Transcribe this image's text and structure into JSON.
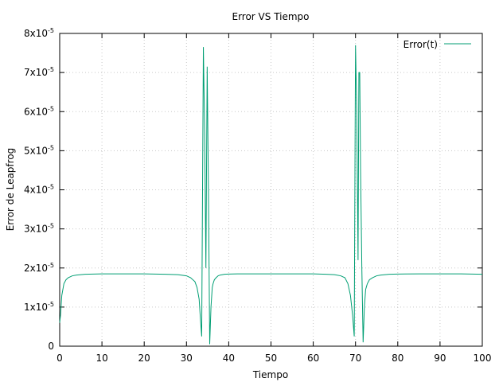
{
  "chart_data": {
    "type": "line",
    "title": "Error VS Tiempo",
    "xlabel": "Tiempo",
    "ylabel": "Error de Leapfrog",
    "xlim": [
      0,
      100
    ],
    "ylim": [
      0,
      8e-05
    ],
    "grid": true,
    "legend": "top-right",
    "x_ticks": [
      "0",
      "10",
      "20",
      "30",
      "40",
      "50",
      "60",
      "70",
      "80",
      "90",
      "100"
    ],
    "x_tick_values": [
      0,
      10,
      20,
      30,
      40,
      50,
      60,
      70,
      80,
      90,
      100
    ],
    "y_ticks": [
      {
        "value": 0,
        "mantissa": "0",
        "exp": ""
      },
      {
        "value": 1e-05,
        "mantissa": "1x10",
        "exp": "-5"
      },
      {
        "value": 2e-05,
        "mantissa": "2x10",
        "exp": "-5"
      },
      {
        "value": 3e-05,
        "mantissa": "3x10",
        "exp": "-5"
      },
      {
        "value": 4e-05,
        "mantissa": "4x10",
        "exp": "-5"
      },
      {
        "value": 5e-05,
        "mantissa": "5x10",
        "exp": "-5"
      },
      {
        "value": 6e-05,
        "mantissa": "6x10",
        "exp": "-5"
      },
      {
        "value": 7e-05,
        "mantissa": "7x10",
        "exp": "-5"
      },
      {
        "value": 8e-05,
        "mantissa": "8x10",
        "exp": "-5"
      }
    ],
    "series": [
      {
        "name": "Error(t)",
        "color": "#009e73",
        "x": [
          0,
          0.2,
          0.5,
          1,
          1.5,
          2,
          3,
          4,
          5,
          6,
          8,
          10,
          15,
          20,
          25,
          28,
          30,
          31,
          32,
          32.5,
          33,
          33.3,
          33.6,
          34,
          34.3,
          34.6,
          34.9,
          35.2,
          35.5,
          35.8,
          36.1,
          36.3,
          36.6,
          37,
          37.5,
          38,
          39,
          40,
          42,
          45,
          50,
          55,
          60,
          63,
          65,
          66.5,
          67.5,
          68.2,
          68.8,
          69.3,
          69.7,
          70.0,
          70.3,
          70.6,
          70.8,
          71.0,
          71.2,
          71.5,
          71.8,
          72.1,
          72.4,
          72.8,
          73.3,
          74,
          75,
          76,
          78,
          80,
          85,
          90,
          95,
          100
        ],
        "y": [
          6e-06,
          8e-06,
          1.3e-05,
          1.6e-05,
          1.7e-05,
          1.75e-05,
          1.8e-05,
          1.82e-05,
          1.83e-05,
          1.84e-05,
          1.845e-05,
          1.85e-05,
          1.85e-05,
          1.85e-05,
          1.84e-05,
          1.83e-05,
          1.8e-05,
          1.75e-05,
          1.65e-05,
          1.5e-05,
          1.2e-05,
          7e-06,
          2.5e-06,
          7.65e-05,
          5.5e-05,
          2e-05,
          7.15e-05,
          4e-05,
          5e-07,
          1e-05,
          1.5e-05,
          1.6e-05,
          1.7e-05,
          1.75e-05,
          1.8e-05,
          1.82e-05,
          1.84e-05,
          1.845e-05,
          1.85e-05,
          1.85e-05,
          1.85e-05,
          1.85e-05,
          1.85e-05,
          1.84e-05,
          1.83e-05,
          1.8e-05,
          1.75e-05,
          1.6e-05,
          1.3e-05,
          8e-06,
          2.5e-06,
          7.7e-05,
          6e-05,
          2.2e-05,
          7e-05,
          7e-05,
          4.5e-05,
          2e-05,
          1e-06,
          1e-05,
          1.45e-05,
          1.6e-05,
          1.7e-05,
          1.75e-05,
          1.8e-05,
          1.82e-05,
          1.84e-05,
          1.845e-05,
          1.85e-05,
          1.85e-05,
          1.85e-05,
          1.84e-05
        ]
      }
    ]
  }
}
